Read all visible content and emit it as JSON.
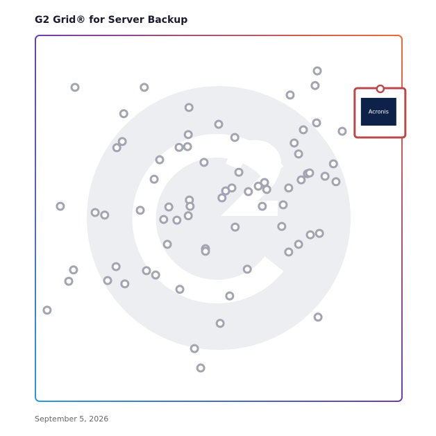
{
  "chart_data": {
    "type": "scatter",
    "title": "G2 Grid® for Server Backup",
    "footnote": "September 5, 2026",
    "xlim": [
      0,
      100
    ],
    "ylim": [
      0,
      100
    ],
    "point_color": "#a2a5b0",
    "x": [
      10.8,
      29.7,
      24.1,
      41.9,
      23.7,
      22.2,
      41.7,
      39.2,
      41.5,
      33.9,
      46.0,
      50.0,
      54.4,
      32.4,
      6.8,
      16.3,
      18.9,
      28.6,
      36.4,
      42.0,
      42.2,
      35.0,
      38.6,
      41.7,
      36.0,
      46.4,
      46.4,
      54.5,
      50.9,
      51.9,
      53.6,
      55.5,
      58.1,
      60.8,
      62.5,
      63.1,
      61.9,
      67.6,
      69.1,
      67.2,
      69.1,
      71.8,
      75.0,
      77.5,
      72.5,
      74.2,
      74.8,
      79.0,
      82.0,
      81.3,
      71.8,
      70.6,
      73.1,
      76.7,
      83.7,
      69.5,
      76.3,
      76.9,
      10.4,
      9.1,
      22.0,
      19.7,
      24.4,
      30.3,
      32.8,
      39.4,
      57.8,
      53.0,
      50.4,
      43.4,
      45.1,
      3.2,
      77.1
    ],
    "y": [
      85.8,
      85.8,
      78.6,
      80.3,
      71.0,
      69.3,
      72.9,
      69.4,
      69.6,
      66.0,
      65.3,
      75.7,
      72.1,
      60.7,
      53.3,
      51.6,
      50.9,
      52.2,
      53.1,
      55.0,
      53.3,
      49.7,
      49.5,
      50.7,
      42.9,
      41.7,
      41.0,
      47.6,
      55.6,
      57.5,
      58.3,
      62.6,
      57.3,
      58.8,
      59.8,
      57.9,
      53.3,
      53.7,
      58.3,
      47.8,
      40.8,
      42.9,
      45.5,
      45.9,
      60.5,
      62.2,
      62.4,
      61.5,
      60.0,
      64.9,
      67.6,
      70.6,
      74.2,
      76.1,
      73.8,
      83.7,
      86.3,
      90.3,
      35.9,
      32.8,
      36.8,
      33.0,
      32.1,
      35.7,
      34.5,
      30.6,
      36.1,
      28.8,
      21.3,
      14.4,
      9.1,
      24.9,
      23.0
    ],
    "highlight": {
      "name": "Acronis",
      "x": 94.1,
      "y": 85.4,
      "color": "#b94a4c",
      "label_color": "#0e2148"
    }
  }
}
